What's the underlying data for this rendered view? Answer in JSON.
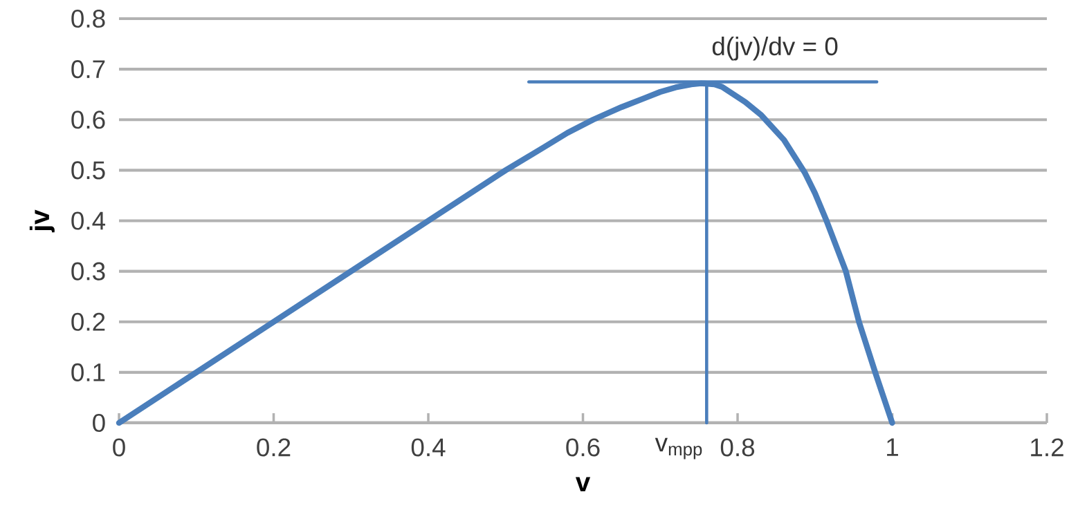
{
  "chart_data": {
    "type": "line",
    "xlabel": "v",
    "ylabel": "jv",
    "xlim": [
      0,
      1.2
    ],
    "ylim": [
      0,
      0.8
    ],
    "xticks": [
      0,
      0.2,
      0.4,
      0.6,
      0.8,
      1,
      1.2
    ],
    "yticks": [
      0,
      0.1,
      0.2,
      0.3,
      0.4,
      0.5,
      0.6,
      0.7,
      0.8
    ],
    "grid": "y",
    "series": [
      {
        "color": "#4a7ebb",
        "x": [
          0,
          0.1,
          0.2,
          0.3,
          0.4,
          0.45,
          0.5,
          0.55,
          0.58,
          0.613,
          0.65,
          0.68,
          0.7,
          0.72,
          0.74,
          0.753,
          0.77,
          0.78,
          0.795,
          0.81,
          0.83,
          0.86,
          0.887,
          0.9,
          0.915,
          0.94,
          0.957,
          0.978,
          1.0
        ],
        "values": [
          0,
          0.1,
          0.2,
          0.3,
          0.4,
          0.45,
          0.5,
          0.546,
          0.574,
          0.6,
          0.625,
          0.643,
          0.655,
          0.664,
          0.67,
          0.672,
          0.67,
          0.665,
          0.65,
          0.635,
          0.61,
          0.56,
          0.495,
          0.455,
          0.4,
          0.3,
          0.2,
          0.1,
          0
        ]
      },
      {
        "color": "#4a7ebb",
        "x": [
          0.53,
          0.98
        ],
        "values": [
          0.675,
          0.675
        ]
      },
      {
        "color": "#4a7ebb",
        "x": [
          0.76,
          0.76
        ],
        "values": [
          0,
          0.672
        ]
      }
    ],
    "annotations": [
      "d(jv)/dv = 0",
      {
        "text": "v$_{mpp}$",
        "x": 0.76,
        "y": 0
      }
    ]
  }
}
